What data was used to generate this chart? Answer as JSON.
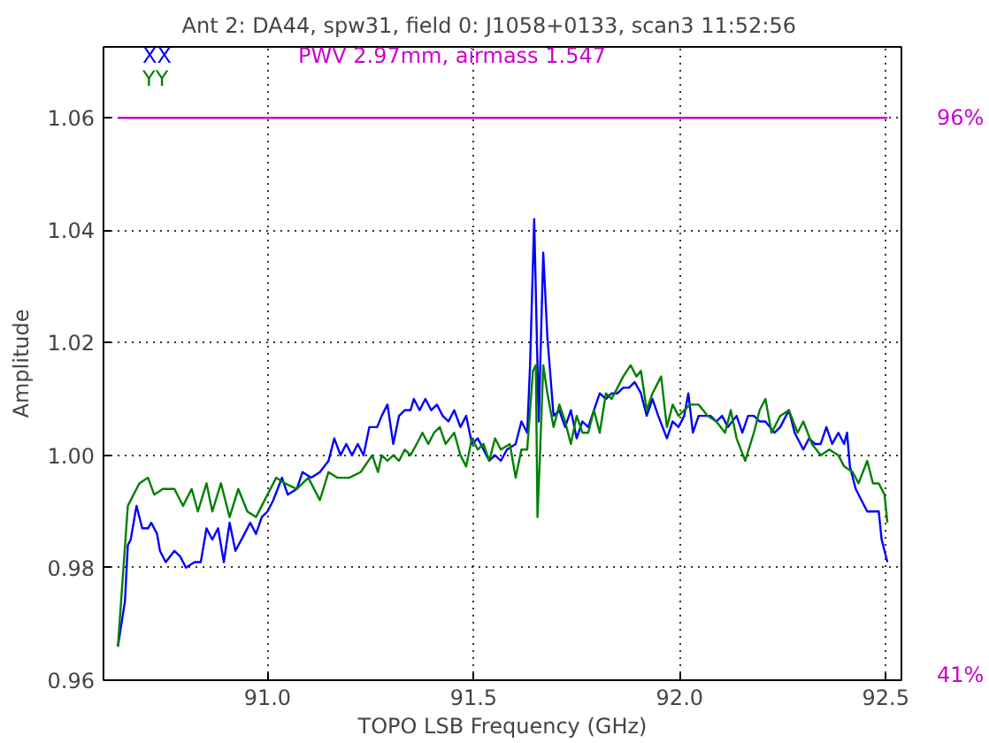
{
  "chart_data": {
    "type": "line",
    "title": "Ant 2: DA44,  spw31,  field 0: J1058+0133,  scan3  11:52:56",
    "xlabel": "TOPO LSB Frequency (GHz)",
    "ylabel": "Amplitude",
    "annotations": [
      "PWV 2.97mm, airmass 1.547"
    ],
    "xlim": [
      90.602,
      92.538
    ],
    "ylim": [
      0.96,
      1.0726
    ],
    "xticks": [
      {
        "value": 91.0,
        "label": "91.0"
      },
      {
        "value": 91.5,
        "label": "91.5"
      },
      {
        "value": 92.0,
        "label": "92.0"
      },
      {
        "value": 92.5,
        "label": "92.5"
      }
    ],
    "yticks": [
      {
        "value": 0.96,
        "label": "0.96"
      },
      {
        "value": 0.98,
        "label": "0.98"
      },
      {
        "value": 1.0,
        "label": "1.00"
      },
      {
        "value": 1.02,
        "label": "1.02"
      },
      {
        "value": 1.04,
        "label": "1.04"
      },
      {
        "value": 1.06,
        "label": "1.06"
      }
    ],
    "y2lim": [
      40.5,
      103
    ],
    "y2ticks": [
      {
        "value": 41,
        "label": "41%"
      },
      {
        "value": 96,
        "label": "96%"
      }
    ],
    "grid": true,
    "legend": "top left",
    "line_style": "solid",
    "series": [
      {
        "name": "XX",
        "color": "#0000ff",
        "x": [
          90.637,
          90.654,
          90.661,
          90.668,
          90.682,
          90.696,
          90.71,
          90.718,
          90.732,
          90.739,
          90.753,
          90.774,
          90.788,
          90.802,
          90.823,
          90.838,
          90.852,
          90.866,
          90.88,
          90.894,
          90.908,
          90.922,
          90.944,
          90.958,
          90.972,
          90.986,
          91.0,
          91.014,
          91.035,
          91.049,
          91.071,
          91.085,
          91.106,
          91.127,
          91.148,
          91.162,
          91.177,
          91.191,
          91.205,
          91.219,
          91.233,
          91.247,
          91.266,
          91.277,
          91.291,
          91.305,
          91.319,
          91.333,
          91.347,
          91.355,
          91.369,
          91.383,
          91.397,
          91.411,
          91.425,
          91.439,
          91.453,
          91.468,
          91.482,
          91.496,
          91.51,
          91.524,
          91.538,
          91.552,
          91.566,
          91.581,
          91.602,
          91.616,
          91.63,
          91.637,
          91.647,
          91.658,
          91.669,
          91.679,
          91.694,
          91.708,
          91.722,
          91.736,
          91.75,
          91.764,
          91.778,
          91.792,
          91.806,
          91.821,
          91.835,
          91.849,
          91.863,
          91.877,
          91.891,
          91.906,
          91.92,
          91.934,
          91.948,
          91.969,
          91.983,
          91.997,
          92.011,
          92.021,
          92.032,
          92.046,
          92.061,
          92.075,
          92.089,
          92.103,
          92.117,
          92.138,
          92.152,
          92.166,
          92.18,
          92.194,
          92.208,
          92.23,
          92.244,
          92.265,
          92.279,
          92.3,
          92.314,
          92.328,
          92.342,
          92.356,
          92.37,
          92.385,
          92.399,
          92.406,
          92.413,
          92.427,
          92.441,
          92.455,
          92.469,
          92.483,
          92.49,
          92.497,
          92.504
        ],
        "values": [
          0.966,
          0.974,
          0.984,
          0.985,
          0.991,
          0.987,
          0.987,
          0.988,
          0.986,
          0.983,
          0.981,
          0.983,
          0.982,
          0.98,
          0.981,
          0.981,
          0.987,
          0.985,
          0.987,
          0.981,
          0.988,
          0.983,
          0.986,
          0.988,
          0.986,
          0.989,
          0.99,
          0.992,
          0.996,
          0.993,
          0.994,
          0.997,
          0.996,
          0.997,
          0.999,
          1.003,
          1.0,
          1.002,
          1.0,
          1.002,
          1.0,
          1.005,
          1.005,
          1.007,
          1.009,
          1.002,
          1.007,
          1.008,
          1.008,
          1.01,
          1.008,
          1.01,
          1.008,
          1.009,
          1.007,
          1.006,
          1.008,
          1.005,
          1.007,
          1.002,
          1.003,
          1.001,
          0.999,
          1.0,
          0.999,
          1.001,
          1.002,
          1.006,
          1.004,
          1.016,
          1.042,
          1.006,
          1.036,
          1.021,
          1.007,
          1.008,
          1.005,
          1.008,
          1.003,
          1.006,
          1.005,
          1.008,
          1.011,
          1.01,
          1.011,
          1.011,
          1.012,
          1.012,
          1.013,
          1.011,
          1.007,
          1.01,
          1.007,
          1.003,
          1.006,
          1.005,
          1.007,
          1.011,
          1.004,
          1.007,
          1.007,
          1.007,
          1.006,
          1.007,
          1.005,
          1.007,
          1.004,
          1.007,
          1.007,
          1.006,
          1.006,
          1.004,
          1.005,
          1.008,
          1.004,
          1.001,
          1.003,
          1.002,
          1.002,
          1.005,
          1.002,
          1.004,
          1.002,
          1.004,
          0.998,
          0.994,
          0.992,
          0.99,
          0.99,
          0.99,
          0.985,
          0.983,
          0.981
        ]
      },
      {
        "name": "YY",
        "color": "#008000",
        "x": [
          90.637,
          90.661,
          90.689,
          90.71,
          90.725,
          90.746,
          90.774,
          90.795,
          90.816,
          90.831,
          90.852,
          90.866,
          90.887,
          90.908,
          90.929,
          90.951,
          90.972,
          91.0,
          91.021,
          91.042,
          91.071,
          91.099,
          91.127,
          91.148,
          91.169,
          91.198,
          91.226,
          91.254,
          91.268,
          91.277,
          91.291,
          91.305,
          91.319,
          91.333,
          91.347,
          91.362,
          91.376,
          91.39,
          91.404,
          91.418,
          91.432,
          91.453,
          91.468,
          91.482,
          91.496,
          91.51,
          91.524,
          91.538,
          91.552,
          91.566,
          91.588,
          91.602,
          91.616,
          91.63,
          91.644,
          91.651,
          91.655,
          91.661,
          91.669,
          91.679,
          91.694,
          91.708,
          91.722,
          91.736,
          91.75,
          91.764,
          91.778,
          91.792,
          91.806,
          91.821,
          91.835,
          91.849,
          91.863,
          91.881,
          91.895,
          91.906,
          91.92,
          91.934,
          91.955,
          91.969,
          91.983,
          91.997,
          92.011,
          92.025,
          92.046,
          92.068,
          92.089,
          92.11,
          92.124,
          92.138,
          92.159,
          92.18,
          92.194,
          92.208,
          92.223,
          92.244,
          92.265,
          92.286,
          92.3,
          92.321,
          92.342,
          92.363,
          92.385,
          92.399,
          92.42,
          92.434,
          92.455,
          92.469,
          92.483,
          92.497,
          92.504
        ],
        "values": [
          0.966,
          0.991,
          0.995,
          0.996,
          0.993,
          0.994,
          0.994,
          0.991,
          0.994,
          0.99,
          0.995,
          0.99,
          0.995,
          0.989,
          0.994,
          0.99,
          0.989,
          0.993,
          0.996,
          0.995,
          0.994,
          0.996,
          0.992,
          0.997,
          0.996,
          0.996,
          0.997,
          1.0,
          0.997,
          1.0,
          0.999,
          1.0,
          0.999,
          1.001,
          1.0,
          1.002,
          1.004,
          1.002,
          1.004,
          1.005,
          1.002,
          1.004,
          1.0,
          0.998,
          1.003,
          1.001,
          1.002,
          0.999,
          1.003,
          1.001,
          1.002,
          0.996,
          1.001,
          1.001,
          1.015,
          1.016,
          0.989,
          1.0,
          1.016,
          1.011,
          1.005,
          1.009,
          1.006,
          1.002,
          1.007,
          1.004,
          1.004,
          1.008,
          1.004,
          1.011,
          1.01,
          1.012,
          1.014,
          1.016,
          1.014,
          1.015,
          1.008,
          1.011,
          1.014,
          1.005,
          1.009,
          1.007,
          1.008,
          1.009,
          1.009,
          1.007,
          1.006,
          1.004,
          1.008,
          1.003,
          0.999,
          1.004,
          1.008,
          1.01,
          1.004,
          1.007,
          1.008,
          1.004,
          1.006,
          1.002,
          1.0,
          1.001,
          1.0,
          0.998,
          0.997,
          0.995,
          0.999,
          0.995,
          0.995,
          0.993,
          0.988
        ]
      },
      {
        "color": "#cc00cc",
        "axis": "y2",
        "x": [
          90.637,
          92.504
        ],
        "values": [
          96,
          96
        ]
      }
    ]
  }
}
